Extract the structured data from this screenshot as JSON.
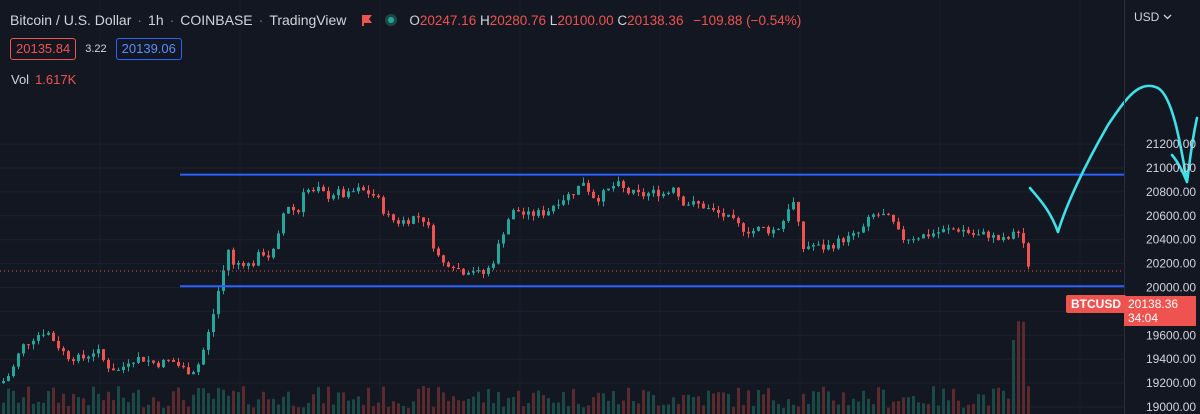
{
  "header": {
    "symbol": "Bitcoin / U.S. Dollar",
    "interval": "1h",
    "exchange": "COINBASE",
    "source": "TradingView",
    "open_label": "O",
    "open": "20247.16",
    "high_label": "H",
    "high": "20280.76",
    "low_label": "L",
    "low": "20100.00",
    "close_label": "C",
    "close": "20138.36",
    "change": "−109.88 (−0.54%)"
  },
  "trade": {
    "sell": "20135.84",
    "spread": "3.22",
    "buy": "20139.06"
  },
  "volume": {
    "label": "Vol",
    "value": "1.617K"
  },
  "currency": "USD",
  "last_price": {
    "symbol": "BTCUSD",
    "price": "20138.36",
    "countdown": "34:04"
  },
  "colors": {
    "bg": "#131722",
    "up": "#26a69a",
    "down": "#ef5350",
    "levels": "#2962ff",
    "drawing": "#3fe0e8",
    "text": "#d1d4dc"
  },
  "chart_data": {
    "type": "candlestick",
    "ylim": [
      19000,
      21300
    ],
    "y_ticks": [
      19000,
      19200,
      19400,
      19600,
      19800,
      20000,
      20200,
      20400,
      20600,
      20800,
      21000,
      21200
    ],
    "y_tick_labels": [
      "19000.00",
      "19200.00",
      "19400.00",
      "19600.00",
      "19800.00",
      "20000.00",
      "20200.00",
      "20400.00",
      "20600.00",
      "20800.00",
      "21000.00",
      "21200.00"
    ],
    "horizontal_levels": [
      20945,
      20010
    ],
    "last_price": 20138.36,
    "close_path": [
      [
        0,
        19200
      ],
      [
        10,
        19290
      ],
      [
        20,
        19500
      ],
      [
        35,
        19600
      ],
      [
        45,
        19640
      ],
      [
        55,
        19530
      ],
      [
        65,
        19430
      ],
      [
        80,
        19400
      ],
      [
        95,
        19480
      ],
      [
        105,
        19350
      ],
      [
        118,
        19300
      ],
      [
        128,
        19400
      ],
      [
        140,
        19410
      ],
      [
        155,
        19360
      ],
      [
        170,
        19390
      ],
      [
        185,
        19300
      ],
      [
        195,
        19320
      ],
      [
        200,
        19420
      ],
      [
        205,
        19560
      ],
      [
        210,
        19700
      ],
      [
        215,
        19900
      ],
      [
        220,
        20080
      ],
      [
        224,
        20200
      ],
      [
        228,
        20360
      ],
      [
        232,
        20180
      ],
      [
        240,
        20220
      ],
      [
        250,
        20180
      ],
      [
        260,
        20300
      ],
      [
        270,
        20250
      ],
      [
        278,
        20450
      ],
      [
        282,
        20620
      ],
      [
        288,
        20700
      ],
      [
        296,
        20600
      ],
      [
        303,
        20860
      ],
      [
        310,
        20780
      ],
      [
        318,
        20820
      ],
      [
        325,
        20760
      ],
      [
        335,
        20800
      ],
      [
        345,
        20760
      ],
      [
        355,
        20820
      ],
      [
        365,
        20800
      ],
      [
        375,
        20760
      ],
      [
        385,
        20600
      ],
      [
        395,
        20550
      ],
      [
        405,
        20560
      ],
      [
        415,
        20600
      ],
      [
        425,
        20560
      ],
      [
        430,
        20400
      ],
      [
        435,
        20300
      ],
      [
        440,
        20200
      ],
      [
        450,
        20210
      ],
      [
        460,
        20130
      ],
      [
        470,
        20160
      ],
      [
        480,
        20100
      ],
      [
        490,
        20180
      ],
      [
        500,
        20420
      ],
      [
        505,
        20550
      ],
      [
        510,
        20620
      ],
      [
        515,
        20650
      ],
      [
        525,
        20600
      ],
      [
        535,
        20620
      ],
      [
        545,
        20630
      ],
      [
        555,
        20720
      ],
      [
        565,
        20760
      ],
      [
        575,
        20820
      ],
      [
        583,
        20900
      ],
      [
        588,
        20800
      ],
      [
        595,
        20740
      ],
      [
        605,
        20800
      ],
      [
        615,
        20870
      ],
      [
        625,
        20800
      ],
      [
        640,
        20770
      ],
      [
        655,
        20800
      ],
      [
        665,
        20780
      ],
      [
        672,
        20860
      ],
      [
        680,
        20720
      ],
      [
        690,
        20700
      ],
      [
        700,
        20690
      ],
      [
        710,
        20640
      ],
      [
        720,
        20610
      ],
      [
        730,
        20560
      ],
      [
        740,
        20500
      ],
      [
        750,
        20470
      ],
      [
        760,
        20500
      ],
      [
        770,
        20470
      ],
      [
        780,
        20520
      ],
      [
        790,
        20740
      ],
      [
        795,
        20650
      ],
      [
        800,
        20320
      ],
      [
        810,
        20360
      ],
      [
        820,
        20330
      ],
      [
        830,
        20350
      ],
      [
        840,
        20400
      ],
      [
        850,
        20420
      ],
      [
        860,
        20470
      ],
      [
        870,
        20600
      ],
      [
        880,
        20610
      ],
      [
        890,
        20560
      ],
      [
        900,
        20410
      ],
      [
        910,
        20420
      ],
      [
        925,
        20440
      ],
      [
        945,
        20480
      ],
      [
        960,
        20490
      ],
      [
        975,
        20430
      ],
      [
        985,
        20450
      ],
      [
        1000,
        20390
      ],
      [
        1010,
        20420
      ],
      [
        1018,
        20500
      ],
      [
        1022,
        20370
      ],
      [
        1025,
        20200
      ],
      [
        1030,
        20138
      ]
    ],
    "annotation": "freehand projection drawing"
  }
}
